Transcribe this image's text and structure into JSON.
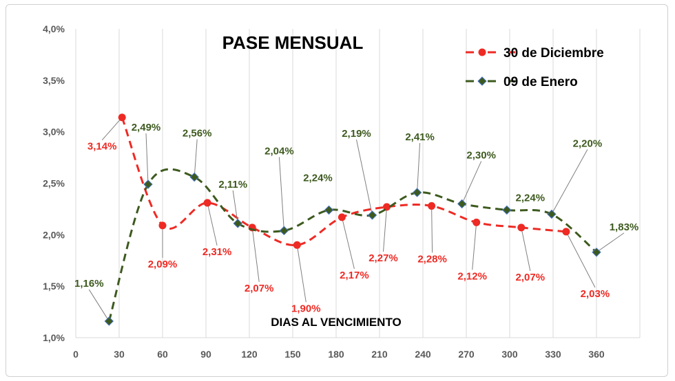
{
  "chart_data": {
    "type": "line",
    "title": "PASE MENSUAL",
    "xlabel": "DIAS AL VENCIMIENTO",
    "ylabel": "",
    "xlim": [
      0,
      390
    ],
    "ylim": [
      1.0,
      4.0
    ],
    "x_ticks": [
      "0",
      "30",
      "60",
      "90",
      "120",
      "150",
      "180",
      "210",
      "240",
      "270",
      "300",
      "330",
      "360"
    ],
    "y_ticks": [
      "1,0%",
      "1,5%",
      "2,0%",
      "2,5%",
      "3,0%",
      "3,5%",
      "4,0%"
    ],
    "grid": "vertical",
    "legend": "top-right",
    "series": [
      {
        "name": "30 de Diciembre",
        "color": "#ee2a24",
        "marker": "circle",
        "line": "dashed-smooth",
        "x": [
          32,
          60,
          91,
          122,
          153,
          184,
          215,
          246,
          277,
          308,
          339
        ],
        "y": [
          3.14,
          2.09,
          2.31,
          2.07,
          1.9,
          2.17,
          2.27,
          2.28,
          2.12,
          2.07,
          2.03
        ],
        "labels": [
          "3,14%",
          "2,09%",
          "2,31%",
          "2,07%",
          "1,90%",
          "2,17%",
          "2,27%",
          "2,28%",
          "2,12%",
          "2,07%",
          "2,03%"
        ]
      },
      {
        "name": "09 de Enero",
        "color": "#3d5a1e",
        "marker": "diamond",
        "line": "dashed-smooth",
        "x": [
          23,
          50,
          82,
          112,
          144,
          175,
          205,
          236,
          267,
          298,
          329,
          360
        ],
        "y": [
          1.16,
          2.49,
          2.56,
          2.11,
          2.04,
          2.24,
          2.19,
          2.41,
          2.3,
          2.24,
          2.2,
          1.83
        ],
        "labels": [
          "1,16%",
          "2,49%",
          "2,56%",
          "2,11%",
          "2,04%",
          "2,24%",
          "2,19%",
          "2,41%",
          "2,30%",
          "2,24%",
          "2,20%",
          "1,83%"
        ]
      }
    ]
  }
}
